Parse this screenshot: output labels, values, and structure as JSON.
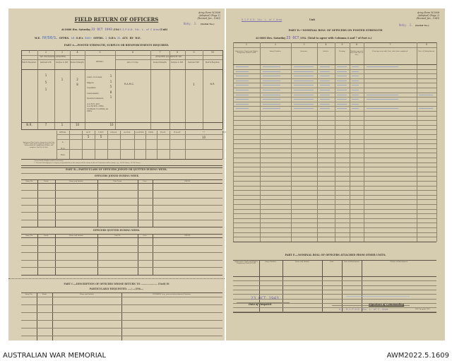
{
  "left_page": {
    "army_form": [
      "Army Form W.3008",
      "(Adapted) (Page 1)",
      "(Revised Jan., 1943)"
    ],
    "serial_value": "Noby. 3.",
    "serial_label": "(Serial No.)",
    "title": "FIELD RETURN OF OFFICERS",
    "at_line": {
      "prefix": "At 0600 Hrs. Saturday",
      "date_stamp": "23 OCT 1943",
      "year": "/194",
      "unit": "R.I.P.O.D. Vic. L. of C Area",
      "unit_label": "(Unit)"
    },
    "we_line": {
      "we_label": "W.E.",
      "we_value": "IV/50/1.",
      "offrs_label": "OFFRS.",
      "offrs_value": "16",
      "ors_label": "O.R's",
      "ors_value": "340+",
      "offrs2_label": "OFFRS.",
      "offrs2_value": "1",
      "ors2_label": "O.R's",
      "ors2_value": "31",
      "att_label": "ATT. BY W.E."
    },
    "part_a_title": "PART A.—POSTED STRENGTH, SURPLUS OR REINFORCEMENTS REQUIRED.",
    "col_numbers": [
      "1",
      "2",
      "3",
      "4",
      "5",
      "6",
      "7",
      "8",
      "9",
      "10"
    ],
    "group_left": "W.E. EXCLUDING ATTACHED.",
    "group_right": "ATTACHED ALLOWED BY W.E.",
    "detail_header": "DETAIL.",
    "headers": [
      "Rein'ts Required.",
      "Deficient W.E.",
      "Surplus to W.E.",
      "Posted Strength.",
      "Arm or Corps.",
      "Posted Strength.",
      "Surplus to W.E.",
      "Deficient W.E.",
      "Rein'ts Required."
    ],
    "detail_rows": [
      "Lieut.-Colonels",
      "Majors",
      "Captains",
      "Lieutenants",
      "Quarter-masters",
      "A.A.N.S. and A.A.M.W.S. Offrs.",
      "Civilians Counting as Offrs."
    ],
    "hand": {
      "deficient": [
        "1",
        "5",
        "1"
      ],
      "surplus": "1",
      "posted": [
        "2",
        "8"
      ],
      "detail_counts": [
        "1",
        "1",
        "5",
        "8",
        "1"
      ],
      "arm": "R.A.M.C.",
      "att_deficient": "1",
      "att_rein": "N.R.",
      "totals": [
        "N.R.",
        "7",
        "1",
        "10",
        "16"
      ]
    },
    "analysis_label": "Analysis of Part A to be shown here for Cols. 4 and 6. Only units required as para. 20 of Instructions for completion of form, will complete Part B(i) & B(ii).",
    "analysis_headers": [
      "DETAIL.",
      "",
      "A.I.F.",
      "C.M.F.",
      "A.W.A.S.",
      "A.A.N.S.",
      "A.A.M.W.S.",
      "CIVIL.",
      "R.A.N.",
      "R.A.A.F.",
      "* *",
      "TOTAL."
    ],
    "analysis_rows": [
      "A.",
      "B.(i)",
      "B.(ii)"
    ],
    "analysis_values": {
      "aif": "5",
      "cmf": "5",
      "total": "10"
    },
    "footnotes": [
      "* Insert detail of higher ranks as necessary.",
      "* * Personnel belonging to a category not provided for in the analysis will be shown in this col. Particulars will be shown, e.g., 10 U.K. Forces, 10 N.Z. Forces."
    ],
    "part_b_title": "PART B.—PARTICULARS OF OFFICERS JOINED OR QUITTED DURING WEEK.",
    "joined_title": "OFFICERS JOINED DURING WEEK",
    "joined_headers": [
      "Army No.",
      "Rank.",
      "Name and Initials.",
      "Unit From.",
      "Date.",
      "CAUSE."
    ],
    "quitted_title": "OFFICERS QUITTED DURING WEEK.",
    "quitted_headers": [
      "Army No.",
      "Rank.",
      "Name and Initials.",
      "Unit To.",
      "Date.",
      "CAUSE."
    ],
    "part_c_title": "PART C.—DESCRIPTION OF OFFICERS WHOSE RETURN TO ..................... (Unit) IS",
    "part_c_title2": "PARTICULARLY REQUESTED. ..../..../194....",
    "part_c_headers": [
      "Army No.",
      "Rank.",
      "Name and Initials.",
      "REMARKS (e.g., present whereabouts if known)."
    ]
  },
  "right_page": {
    "unit_value": "R.I.P.O.D. Vic. L. of C Area",
    "unit_label": "Unit",
    "army_form": [
      "Army Form W.3008",
      "(Adapted) (Page 2)",
      "(Revised Jan., 1943)"
    ],
    "serial_value": "Noby. 3.",
    "serial_label": "(Serial No.)",
    "part_d_title": "PART D.—NOMINAL ROLL OF OFFICERS ON POSTED STRENGTH",
    "at_line": "At 0600 Hrs. Saturday",
    "date_stamp": "23 OCT",
    "at_line_rest": "/194. (Total to agree with Columns 4 and 7 of Part A.)",
    "col_numbers": [
      "1",
      "2",
      "3",
      "4",
      "5",
      "6",
      "7",
      "8"
    ],
    "headers": [
      "Substantive Rank and Higher Temporary Rank if Held.",
      "Army Number.",
      "Surname.",
      "Initials.",
      "Posting.",
      "Whether present with Unit (Yes or No).",
      "If not present with Unit, state how employed.",
      "Date of Embarkment."
    ],
    "part_e_title": "PART E.—NOMINAL ROLL OF OFFICERS ATTACHED FROM OTHER UNITS.",
    "part_e_headers": [
      "Substantive Rank and Higher Temporary Rank if Held.",
      "Army Number.",
      "Name and Initials.",
      "Unit.",
      "Date of Attachment.",
      "Nature of Attachment."
    ],
    "despatch_date": "23 OCT 1943",
    "despatch_label": "Date of Despatch",
    "signature_label": "Signature of Commanding",
    "signature_stamp": "A.G. R.I.P.O.D. Vic. L. of C. Area",
    "print_code": "A.W. 3m pads 2/43"
  },
  "footer": {
    "left": "AUSTRALIAN WAR MEMORIAL",
    "right": "AWM2022.5.1609"
  }
}
